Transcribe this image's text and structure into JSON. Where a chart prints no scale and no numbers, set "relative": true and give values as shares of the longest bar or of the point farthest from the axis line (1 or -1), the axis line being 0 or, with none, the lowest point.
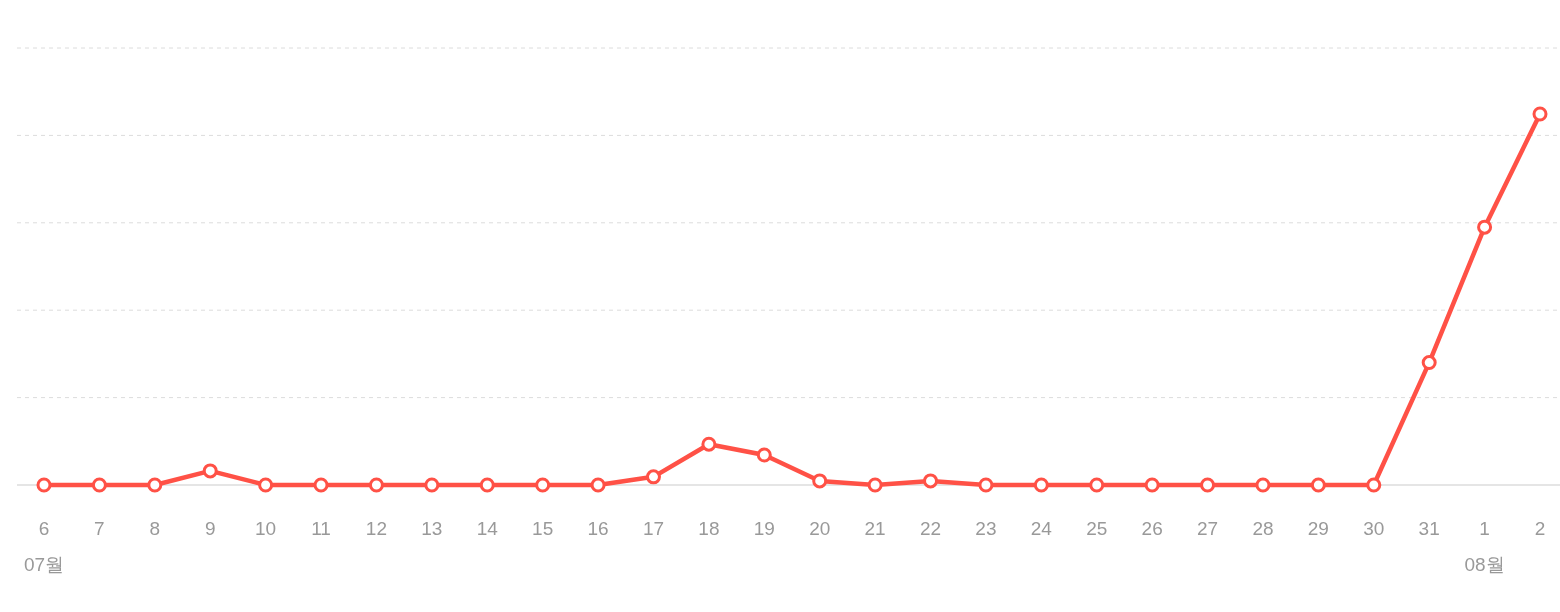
{
  "chart_data": {
    "type": "line",
    "relative": true,
    "categories": [
      "6",
      "7",
      "8",
      "9",
      "10",
      "11",
      "12",
      "13",
      "14",
      "15",
      "16",
      "17",
      "18",
      "19",
      "20",
      "21",
      "22",
      "23",
      "24",
      "25",
      "26",
      "27",
      "28",
      "29",
      "30",
      "31",
      "1",
      "2"
    ],
    "series": [
      {
        "color": "#ff5146",
        "values": [
          0,
          0,
          0,
          0.038,
          0,
          0,
          0,
          0,
          0,
          0,
          0,
          0.022,
          0.11,
          0.081,
          0.011,
          0,
          0.011,
          0,
          0,
          0,
          0,
          0,
          0,
          0,
          0,
          0.33,
          0.695,
          1
        ]
      }
    ],
    "marker": "circle",
    "line_style": "solid",
    "grid": "y",
    "annotations": [
      "07월",
      "08월"
    ]
  }
}
